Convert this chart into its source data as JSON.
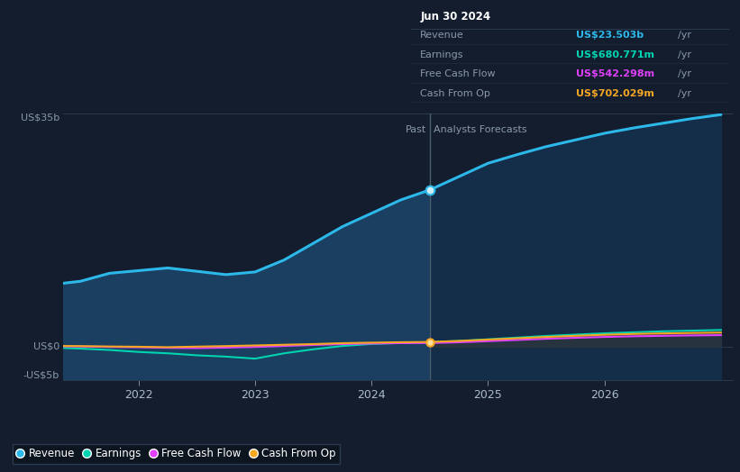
{
  "bg_color": "#131d2e",
  "plot_bg_color": "#131d2e",
  "x_min": 2021.35,
  "x_max": 2027.1,
  "y_min": -5000000000.0,
  "y_max": 35000000000.0,
  "divider_x": 2024.5,
  "ytick_labels_vals": [
    -5000000000.0,
    0,
    35000000000.0
  ],
  "ytick_labels_text": [
    "-US$5b",
    "US$0",
    "US$35b"
  ],
  "xticks": [
    2022,
    2023,
    2024,
    2025,
    2026
  ],
  "xtick_labels": [
    "2022",
    "2023",
    "2024",
    "2025",
    "2026"
  ],
  "past_label": "Past",
  "forecast_label": "Analysts Forecasts",
  "revenue_color": "#2db8ea",
  "earnings_color": "#00d4b0",
  "fcf_color": "#e040fb",
  "cashop_color": "#f5a623",
  "revenue_past_x": [
    2021.35,
    2021.5,
    2021.75,
    2022.0,
    2022.25,
    2022.5,
    2022.75,
    2023.0,
    2023.25,
    2023.5,
    2023.75,
    2024.0,
    2024.25,
    2024.5
  ],
  "revenue_past_y": [
    9500000000.0,
    9800000000.0,
    11000000000.0,
    11400000000.0,
    11800000000.0,
    11300000000.0,
    10800000000.0,
    11200000000.0,
    13000000000.0,
    15500000000.0,
    18000000000.0,
    20000000000.0,
    22000000000.0,
    23503000000.0
  ],
  "revenue_future_x": [
    2024.5,
    2024.75,
    2025.0,
    2025.25,
    2025.5,
    2025.75,
    2026.0,
    2026.25,
    2026.5,
    2026.75,
    2027.0
  ],
  "revenue_future_y": [
    23503000000.0,
    25500000000.0,
    27500000000.0,
    28800000000.0,
    30000000000.0,
    31000000000.0,
    32000000000.0,
    32800000000.0,
    33500000000.0,
    34200000000.0,
    34800000000.0
  ],
  "earnings_past_x": [
    2021.35,
    2021.5,
    2021.75,
    2022.0,
    2022.25,
    2022.5,
    2022.75,
    2023.0,
    2023.25,
    2023.5,
    2023.75,
    2024.0,
    2024.25,
    2024.5
  ],
  "earnings_past_y": [
    -200000000.0,
    -300000000.0,
    -500000000.0,
    -800000000.0,
    -1000000000.0,
    -1300000000.0,
    -1500000000.0,
    -1800000000.0,
    -1000000000.0,
    -400000000.0,
    100000000.0,
    400000000.0,
    550000000.0,
    680000000.0
  ],
  "earnings_future_x": [
    2024.5,
    2024.75,
    2025.0,
    2025.25,
    2025.5,
    2025.75,
    2026.0,
    2026.25,
    2026.5,
    2026.75,
    2027.0
  ],
  "earnings_future_y": [
    680000000.0,
    850000000.0,
    1100000000.0,
    1350000000.0,
    1600000000.0,
    1800000000.0,
    2000000000.0,
    2150000000.0,
    2300000000.0,
    2400000000.0,
    2500000000.0
  ],
  "fcf_past_x": [
    2021.35,
    2021.5,
    2021.75,
    2022.0,
    2022.25,
    2022.5,
    2022.75,
    2023.0,
    2023.25,
    2023.5,
    2023.75,
    2024.0,
    2024.25,
    2024.5
  ],
  "fcf_past_y": [
    50000000.0,
    20000000.0,
    -50000000.0,
    -100000000.0,
    -180000000.0,
    -220000000.0,
    -150000000.0,
    -50000000.0,
    100000000.0,
    250000000.0,
    380000000.0,
    470000000.0,
    520000000.0,
    542000000.0
  ],
  "fcf_future_x": [
    2024.5,
    2024.75,
    2025.0,
    2025.25,
    2025.5,
    2025.75,
    2026.0,
    2026.25,
    2026.5,
    2026.75,
    2027.0
  ],
  "fcf_future_y": [
    542000000.0,
    650000000.0,
    820000000.0,
    1000000000.0,
    1180000000.0,
    1320000000.0,
    1450000000.0,
    1550000000.0,
    1620000000.0,
    1680000000.0,
    1720000000.0
  ],
  "cashop_past_x": [
    2021.35,
    2021.5,
    2021.75,
    2022.0,
    2022.25,
    2022.5,
    2022.75,
    2023.0,
    2023.25,
    2023.5,
    2023.75,
    2024.0,
    2024.25,
    2024.5
  ],
  "cashop_past_y": [
    100000000.0,
    80000000.0,
    20000000.0,
    -20000000.0,
    -80000000.0,
    0.0,
    80000000.0,
    180000000.0,
    280000000.0,
    380000000.0,
    520000000.0,
    600000000.0,
    660000000.0,
    702000000.0
  ],
  "cashop_future_x": [
    2024.5,
    2024.75,
    2025.0,
    2025.25,
    2025.5,
    2025.75,
    2026.0,
    2026.25,
    2026.5,
    2026.75,
    2027.0
  ],
  "cashop_future_y": [
    702000000.0,
    850000000.0,
    1050000000.0,
    1250000000.0,
    1450000000.0,
    1620000000.0,
    1780000000.0,
    1900000000.0,
    1980000000.0,
    2050000000.0,
    2100000000.0
  ],
  "tooltip_title": "Jun 30 2024",
  "tooltip_rows": [
    {
      "label": "Revenue",
      "value": "US$23.503b",
      "unit": "/yr",
      "color": "#2db8ea"
    },
    {
      "label": "Earnings",
      "value": "US$680.771m",
      "unit": "/yr",
      "color": "#00d4b0"
    },
    {
      "label": "Free Cash Flow",
      "value": "US$542.298m",
      "unit": "/yr",
      "color": "#e040fb"
    },
    {
      "label": "Cash From Op",
      "value": "US$702.029m",
      "unit": "/yr",
      "color": "#f5a623"
    }
  ],
  "legend_items": [
    {
      "label": "Revenue",
      "color": "#2db8ea"
    },
    {
      "label": "Earnings",
      "color": "#00d4b0"
    },
    {
      "label": "Free Cash Flow",
      "color": "#e040fb"
    },
    {
      "label": "Cash From Op",
      "color": "#f5a623"
    }
  ]
}
